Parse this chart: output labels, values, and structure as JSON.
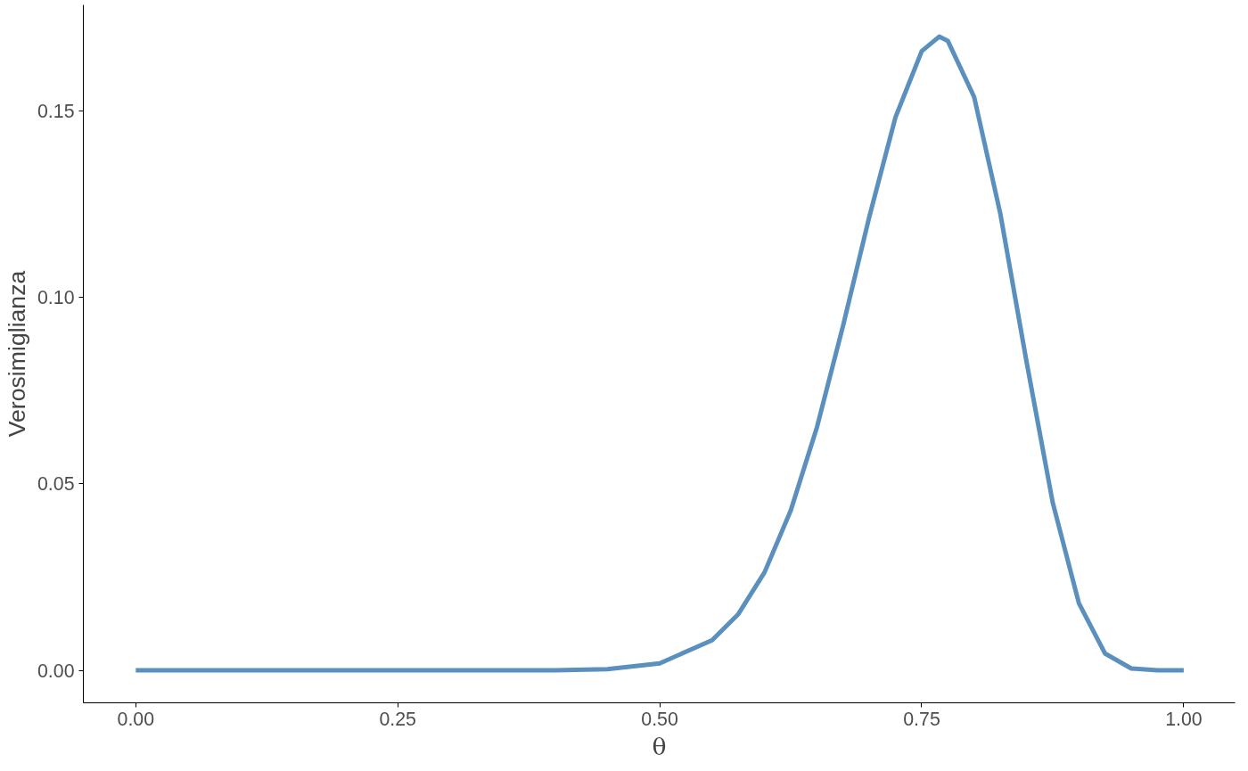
{
  "chart_data": {
    "type": "line",
    "xlabel": "θ",
    "ylabel": "Verosimiglianza",
    "x": [
      0,
      0.1,
      0.2,
      0.3,
      0.4,
      0.45,
      0.5,
      0.55,
      0.575,
      0.6,
      0.625,
      0.65,
      0.675,
      0.7,
      0.725,
      0.75,
      0.7667,
      0.775,
      0.8,
      0.825,
      0.85,
      0.875,
      0.9,
      0.925,
      0.95,
      0.975,
      1
    ],
    "series": [
      {
        "color": "#5a8fbe",
        "values": [
          0,
          0,
          0,
          0,
          0,
          0.0003,
          0.0019,
          0.0081,
          0.0151,
          0.0263,
          0.0429,
          0.0652,
          0.0925,
          0.1217,
          0.1484,
          0.1661,
          0.17,
          0.1688,
          0.1538,
          0.1225,
          0.0828,
          0.045,
          0.018,
          0.0045,
          0.0005,
          0,
          0
        ]
      }
    ],
    "xlim": [
      -0.05,
      1.049
    ],
    "ylim": [
      -0.0087,
      0.1785
    ],
    "xticks": [
      {
        "value": 0,
        "label": "0.00"
      },
      {
        "value": 0.25,
        "label": "0.25"
      },
      {
        "value": 0.5,
        "label": "0.50"
      },
      {
        "value": 0.75,
        "label": "0.75"
      },
      {
        "value": 1,
        "label": "1.00"
      }
    ],
    "yticks": [
      {
        "value": 0,
        "label": "0.00"
      },
      {
        "value": 0.05,
        "label": "0.05"
      },
      {
        "value": 0.1,
        "label": "0.10"
      },
      {
        "value": 0.15,
        "label": "0.15"
      }
    ],
    "grid": false,
    "line_style": "solid",
    "marker": "none"
  }
}
